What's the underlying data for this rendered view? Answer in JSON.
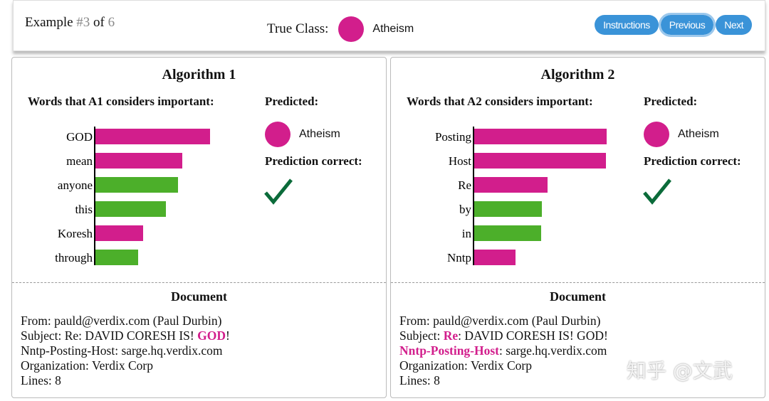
{
  "header": {
    "example_prefix": "Example ",
    "example_num": "#3",
    "example_of": " of ",
    "example_total": "6",
    "true_class_label": "True Class:",
    "true_class": "Atheism",
    "buttons": [
      "Instructions",
      "Previous",
      "Next"
    ]
  },
  "colors": {
    "atheism": "#d21e8c",
    "christian": "#4caf2a",
    "check": "#0b6b3a",
    "button": "#3a93d8"
  },
  "panels": [
    {
      "title": "Algorithm 1",
      "words_label": "Words that A1 considers important:",
      "predicted_label": "Predicted:",
      "predicted": "Atheism",
      "correct_label": "Prediction correct:",
      "correct": true,
      "document_title": "Document",
      "doc_lines": [
        [
          {
            "t": "From: pauld@verdix.com (Paul Durbin)"
          }
        ],
        [
          {
            "t": "Subject: Re: DAVID CORESH IS! "
          },
          {
            "t": "GOD",
            "h": true
          },
          {
            "t": "!"
          }
        ],
        [
          {
            "t": "Nntp-Posting-Host: sarge.hq.verdix.com"
          }
        ],
        [
          {
            "t": "Organization: Verdix Corp"
          }
        ],
        [
          {
            "t": "Lines: 8"
          }
        ]
      ]
    },
    {
      "title": "Algorithm 2",
      "words_label": "Words that A2 considers important:",
      "predicted_label": "Predicted:",
      "predicted": "Atheism",
      "correct_label": "Prediction correct:",
      "correct": true,
      "document_title": "Document",
      "doc_lines": [
        [
          {
            "t": "From: pauld@verdix.com (Paul Durbin)"
          }
        ],
        [
          {
            "t": "Subject: "
          },
          {
            "t": "Re",
            "h": true
          },
          {
            "t": ": DAVID CORESH IS! GOD!"
          }
        ],
        [
          {
            "t": "Nntp-Posting-Host",
            "h": true
          },
          {
            "t": ": sarge.hq.verdix.com"
          }
        ],
        [
          {
            "t": "Organization: Verdix Corp"
          }
        ],
        [
          {
            "t": "Lines: 8"
          }
        ]
      ]
    }
  ],
  "chart_data": [
    {
      "type": "bar",
      "orientation": "horizontal",
      "categories": [
        "GOD",
        "mean",
        "anyone",
        "this",
        "Koresh",
        "through"
      ],
      "values": [
        162,
        123,
        117,
        100,
        68,
        61
      ],
      "classes": [
        "atheism",
        "atheism",
        "christian",
        "christian",
        "atheism",
        "christian"
      ]
    },
    {
      "type": "bar",
      "orientation": "horizontal",
      "categories": [
        "Posting",
        "Host",
        "Re",
        "by",
        "in",
        "Nntp"
      ],
      "values": [
        187,
        186,
        104,
        96,
        95,
        59
      ],
      "classes": [
        "atheism",
        "atheism",
        "atheism",
        "christian",
        "christian",
        "atheism"
      ]
    }
  ],
  "watermark": "知乎 @文武"
}
